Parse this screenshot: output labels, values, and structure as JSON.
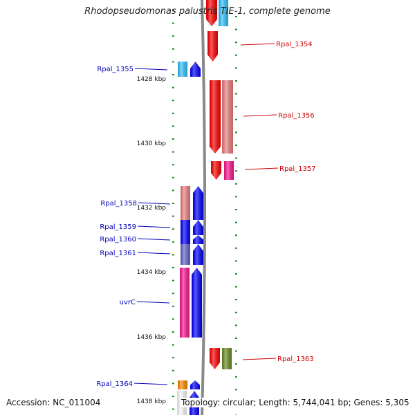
{
  "title": "Rhodopseudomonas palustris TIE-1, complete genome",
  "footer": {
    "accession": "Accession: NC_011004",
    "topology": "Topology: circular; Length: 5,744,041 bp; Genes: 5,305"
  },
  "colors": {
    "label_left": "#0000bb",
    "label_right": "#cc0000",
    "backbone": "#888888",
    "tick": "#228b22"
  },
  "scale": {
    "unit": "kbp",
    "labels": [
      "1428 kbp",
      "1430 kbp",
      "1432 kbp",
      "1434 kbp",
      "1436 kbp",
      "1438 kbp"
    ]
  },
  "genes": [
    {
      "label": "",
      "strand": "+",
      "color": "#ff0000",
      "shade": "#ff9999"
    },
    {
      "label": "",
      "strand": "+",
      "color": "#33c4ff",
      "shade": ""
    },
    {
      "label": "Rpal_1354",
      "strand": "+",
      "color": "#ff0000",
      "shade": ""
    },
    {
      "label": "Rpal_1355",
      "strand": "-",
      "color": "#0000ff",
      "shade": "#33c4ff"
    },
    {
      "label": "Rpal_1356",
      "strand": "+",
      "color": "#ff0000",
      "shade": "#f08080"
    },
    {
      "label": "Rpal_1357",
      "strand": "+",
      "color": "#ff0000",
      "shade": "#ff1493"
    },
    {
      "label": "Rpal_1358",
      "strand": "-",
      "color": "#0000ff",
      "shade": "#f08080"
    },
    {
      "label": "Rpal_1359",
      "strand": "-",
      "color": "#0000ff",
      "shade": "#0000ff"
    },
    {
      "label": "Rpal_1360",
      "strand": "-",
      "color": "#0000ff",
      "shade": "#0000ff"
    },
    {
      "label": "Rpal_1361",
      "strand": "-",
      "color": "#0000ff",
      "shade": "#6666cc"
    },
    {
      "label": "uvrC",
      "strand": "-",
      "color": "#0000ff",
      "shade": "#ff1493"
    },
    {
      "label": "Rpal_1363",
      "strand": "+",
      "color": "#ff0000",
      "shade": "#6b8e23"
    },
    {
      "label": "Rpal_1364",
      "strand": "-",
      "color": "#0000ff",
      "shade": "#ff8c00"
    },
    {
      "label": "",
      "strand": "-",
      "color": "#0000ff",
      "shade": "#ffffff"
    }
  ]
}
